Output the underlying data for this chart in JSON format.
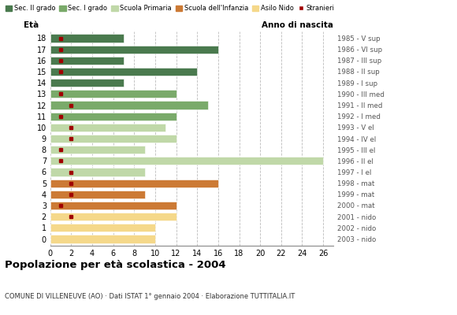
{
  "ages": [
    18,
    17,
    16,
    15,
    14,
    13,
    12,
    11,
    10,
    9,
    8,
    7,
    6,
    5,
    4,
    3,
    2,
    1,
    0
  ],
  "years": [
    "1985 - V sup",
    "1986 - VI sup",
    "1987 - III sup",
    "1988 - II sup",
    "1989 - I sup",
    "1990 - III med",
    "1991 - II med",
    "1992 - I med",
    "1993 - V el",
    "1994 - IV el",
    "1995 - III el",
    "1996 - II el",
    "1997 - I el",
    "1998 - mat",
    "1999 - mat",
    "2000 - mat",
    "2001 - nido",
    "2002 - nido",
    "2003 - nido"
  ],
  "values": [
    7,
    16,
    7,
    14,
    7,
    12,
    15,
    12,
    11,
    12,
    9,
    26,
    9,
    16,
    9,
    12,
    12,
    10,
    10
  ],
  "stranieri": [
    1,
    1,
    1,
    1,
    0,
    1,
    2,
    1,
    2,
    2,
    1,
    1,
    2,
    2,
    2,
    1,
    2,
    0,
    0
  ],
  "bar_colors": [
    "#4a7a4e",
    "#4a7a4e",
    "#4a7a4e",
    "#4a7a4e",
    "#4a7a4e",
    "#7aaa6a",
    "#7aaa6a",
    "#7aaa6a",
    "#c0d8a8",
    "#c0d8a8",
    "#c0d8a8",
    "#c0d8a8",
    "#c0d8a8",
    "#cc7a35",
    "#cc7a35",
    "#cc7a35",
    "#f5d88a",
    "#f5d88a",
    "#f5d88a"
  ],
  "legend_labels": [
    "Sec. II grado",
    "Sec. I grado",
    "Scuola Primaria",
    "Scuola dell'Infanzia",
    "Asilo Nido",
    "Stranieri"
  ],
  "legend_colors": [
    "#4a7a4e",
    "#7aaa6a",
    "#c0d8a8",
    "#cc7a35",
    "#f5d88a",
    "#a00000"
  ],
  "stranieri_color": "#a00000",
  "title": "Popolazione per età scolastica - 2004",
  "subtitle": "COMUNE DI VILLENEUVE (AO) · Dati ISTAT 1° gennaio 2004 · Elaborazione TUTTITALIA.IT",
  "label_eta": "Età",
  "label_anno": "Anno di nascita",
  "xlim": [
    0,
    27
  ],
  "xticks": [
    0,
    2,
    4,
    6,
    8,
    10,
    12,
    14,
    16,
    18,
    20,
    22,
    24,
    26
  ],
  "bg_color": "#ffffff",
  "bar_height": 0.72,
  "grid_color": "#bbbbbb"
}
